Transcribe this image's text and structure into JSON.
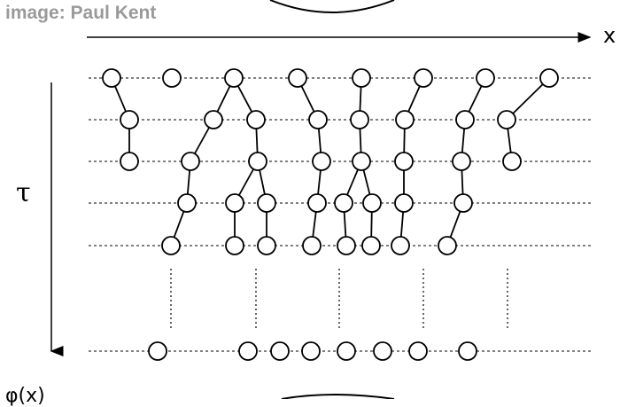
{
  "credit": "image: Paul Kent",
  "axis_x_label": "x",
  "axis_tau_label": "τ",
  "phi_label": "φ(x)",
  "walker_rows": [
    [
      126,
      194,
      264,
      336,
      408,
      478,
      548,
      620
    ],
    [
      146,
      241,
      289,
      359,
      406,
      457,
      525,
      572
    ],
    [
      146,
      215,
      291,
      363,
      408,
      456,
      521,
      578
    ],
    [
      211,
      265,
      301,
      358,
      388,
      420,
      456,
      523
    ],
    [
      193,
      265,
      301,
      352,
      391,
      419,
      452,
      505
    ]
  ],
  "final_row": [
    178,
    280,
    316,
    351,
    391,
    432,
    472,
    528
  ],
  "links": [
    [
      0,
      0,
      1,
      0
    ],
    [
      1,
      0,
      2,
      0
    ],
    [
      0,
      2,
      1,
      1
    ],
    [
      0,
      2,
      1,
      2
    ],
    [
      1,
      1,
      2,
      1
    ],
    [
      1,
      2,
      2,
      2
    ],
    [
      0,
      3,
      1,
      3
    ],
    [
      1,
      3,
      2,
      3
    ],
    [
      0,
      4,
      1,
      4
    ],
    [
      1,
      4,
      2,
      4
    ],
    [
      0,
      5,
      1,
      5
    ],
    [
      1,
      5,
      2,
      5
    ],
    [
      0,
      6,
      1,
      6
    ],
    [
      1,
      6,
      2,
      6
    ],
    [
      0,
      7,
      1,
      7
    ],
    [
      1,
      7,
      2,
      7
    ],
    [
      2,
      1,
      3,
      0
    ],
    [
      3,
      0,
      4,
      0
    ],
    [
      2,
      2,
      3,
      1
    ],
    [
      2,
      2,
      3,
      2
    ],
    [
      3,
      1,
      4,
      1
    ],
    [
      3,
      2,
      4,
      2
    ],
    [
      2,
      3,
      3,
      3
    ],
    [
      3,
      3,
      4,
      3
    ],
    [
      2,
      4,
      3,
      4
    ],
    [
      2,
      4,
      3,
      5
    ],
    [
      3,
      4,
      4,
      4
    ],
    [
      3,
      5,
      4,
      5
    ],
    [
      2,
      5,
      3,
      6
    ],
    [
      3,
      6,
      4,
      6
    ],
    [
      2,
      6,
      3,
      7
    ],
    [
      3,
      7,
      4,
      7
    ]
  ],
  "dotted_columns": [
    193,
    289,
    383,
    478,
    573
  ]
}
